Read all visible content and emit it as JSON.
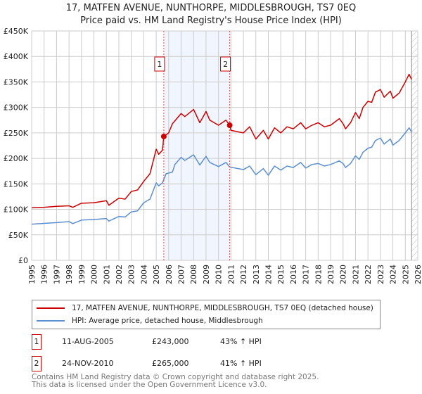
{
  "title": "17, MATFEN AVENUE, NUNTHORPE, MIDDLESBROUGH, TS7 0EQ",
  "subtitle": "Price paid vs. HM Land Registry's House Price Index (HPI)",
  "chart_data": {
    "type": "line",
    "xlim": [
      1995,
      2026
    ],
    "ylim": [
      0,
      450000
    ],
    "yticks": [
      "£0",
      "£50K",
      "£100K",
      "£150K",
      "£200K",
      "£250K",
      "£300K",
      "£350K",
      "£400K",
      "£450K"
    ],
    "xticks": [
      "1995",
      "1996",
      "1997",
      "1998",
      "1999",
      "2000",
      "2001",
      "2002",
      "2003",
      "2004",
      "2005",
      "2006",
      "2007",
      "2008",
      "2009",
      "2010",
      "2011",
      "2012",
      "2013",
      "2014",
      "2015",
      "2016",
      "2017",
      "2018",
      "2019",
      "2020",
      "2021",
      "2022",
      "2023",
      "2024",
      "2025",
      "2026"
    ],
    "shaded_range": [
      2005.61,
      2010.9
    ],
    "forecast_from": 2025.5,
    "colors": {
      "property": "#cc0000",
      "hpi": "#5b8fd0"
    },
    "series": [
      {
        "name": "17, MATFEN AVENUE, NUNTHORPE, MIDDLESBROUGH, TS7 0EQ (detached house)",
        "x": [
          1995,
          1996,
          1997,
          1998,
          1998.3,
          1999,
          2000,
          2001,
          2001.2,
          2002,
          2002.5,
          2003,
          2003.5,
          2004,
          2004.5,
          2005,
          2005.2,
          2005.5,
          2005.61,
          2006,
          2006.3,
          2007,
          2007.3,
          2008,
          2008.5,
          2009,
          2009.3,
          2010,
          2010.6,
          2010.9,
          2011,
          2012,
          2012.5,
          2013,
          2013.6,
          2014,
          2014.5,
          2015,
          2015.5,
          2016,
          2016.6,
          2017,
          2017.5,
          2018,
          2018.5,
          2019,
          2019.7,
          2020,
          2020.2,
          2020.6,
          2021,
          2021.3,
          2021.6,
          2022,
          2022.3,
          2022.6,
          2023,
          2023.3,
          2023.8,
          2024,
          2024.5,
          2025,
          2025.3,
          2025.5
        ],
        "y": [
          103000,
          104000,
          106000,
          107000,
          104000,
          112000,
          113000,
          117000,
          108000,
          122000,
          120000,
          135000,
          138000,
          155000,
          170000,
          218000,
          208000,
          216000,
          243000,
          250000,
          268000,
          288000,
          282000,
          296000,
          270000,
          292000,
          275000,
          265000,
          275000,
          265000,
          255000,
          250000,
          262000,
          238000,
          255000,
          238000,
          260000,
          250000,
          262000,
          258000,
          270000,
          258000,
          265000,
          270000,
          262000,
          265000,
          278000,
          268000,
          258000,
          270000,
          290000,
          278000,
          300000,
          312000,
          310000,
          330000,
          335000,
          320000,
          332000,
          318000,
          328000,
          350000,
          365000,
          355000
        ]
      },
      {
        "name": "HPI: Average price, detached house, Middlesbrough",
        "x": [
          1995,
          1997,
          1998,
          1998.3,
          1999,
          2000,
          2001,
          2001.2,
          2002,
          2002.5,
          2003,
          2003.5,
          2004,
          2004.5,
          2005,
          2005.2,
          2005.5,
          2005.8,
          2006.3,
          2006.5,
          2007,
          2007.3,
          2008,
          2008.5,
          2009,
          2009.3,
          2010,
          2010.6,
          2010.9,
          2012,
          2012.5,
          2013,
          2013.6,
          2014,
          2014.5,
          2015,
          2015.5,
          2016,
          2016.6,
          2017,
          2017.5,
          2018,
          2018.5,
          2019,
          2019.7,
          2020,
          2020.2,
          2020.6,
          2021,
          2021.3,
          2021.6,
          2022,
          2022.3,
          2022.6,
          2023,
          2023.3,
          2023.8,
          2024,
          2024.5,
          2025,
          2025.3,
          2025.5
        ],
        "y": [
          71000,
          74000,
          76000,
          72000,
          79000,
          80000,
          82000,
          77000,
          86000,
          85000,
          95000,
          97000,
          113000,
          120000,
          152000,
          146000,
          152000,
          170000,
          173000,
          188000,
          202000,
          196000,
          207000,
          187000,
          204000,
          192000,
          184000,
          192000,
          183000,
          178000,
          185000,
          168000,
          180000,
          167000,
          185000,
          177000,
          185000,
          182000,
          192000,
          181000,
          188000,
          190000,
          185000,
          188000,
          195000,
          190000,
          182000,
          190000,
          205000,
          198000,
          212000,
          220000,
          222000,
          235000,
          240000,
          228000,
          238000,
          226000,
          235000,
          250000,
          260000,
          252000
        ]
      }
    ],
    "sales": [
      {
        "label": "1",
        "x": 2005.61,
        "y": 243000
      },
      {
        "label": "2",
        "x": 2010.9,
        "y": 265000
      }
    ]
  },
  "legend": {
    "property": "17, MATFEN AVENUE, NUNTHORPE, MIDDLESBROUGH, TS7 0EQ (detached house)",
    "hpi": "HPI: Average price, detached house, Middlesbrough"
  },
  "sales_table": [
    {
      "num": "1",
      "date": "11-AUG-2005",
      "price": "£243,000",
      "delta": "43% ↑ HPI"
    },
    {
      "num": "2",
      "date": "24-NOV-2010",
      "price": "£265,000",
      "delta": "41% ↑ HPI"
    }
  ],
  "footer": {
    "line1": "Contains HM Land Registry data © Crown copyright and database right 2025.",
    "line2": "This data is licensed under the Open Government Licence v3.0."
  }
}
